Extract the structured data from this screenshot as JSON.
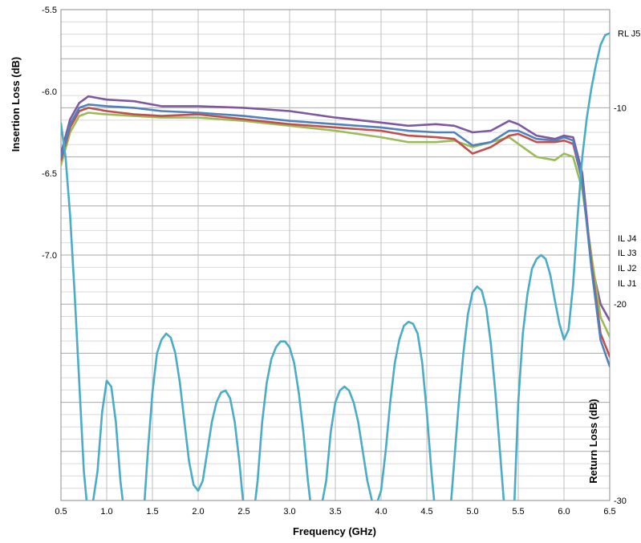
{
  "chart_data": [
    {
      "type": "line",
      "xlabel": "Frequency (GHz)",
      "ylabel": "Insertion Loss (dB)",
      "xlim": [
        0.5,
        6.5
      ],
      "ylim": [
        -8.5,
        -5.5
      ],
      "x_ticks": [
        "0.5",
        "1.0",
        "1.5",
        "2.0",
        "2.5",
        "3.0",
        "3.5",
        "4.0",
        "4.5",
        "5.0",
        "5.5",
        "6.0",
        "6.5"
      ],
      "y_ticks": [
        {
          "value": -5.5,
          "label": "-5.5"
        },
        {
          "value": -6.0,
          "label": "-6.0"
        },
        {
          "value": -6.5,
          "label": "-6.5"
        },
        {
          "value": -7.0,
          "label": "-7.0"
        }
      ],
      "grid": "major and minor",
      "series": [
        {
          "name": "IL J4",
          "color": "#7f58a0",
          "x": [
            0.5,
            0.6,
            0.7,
            0.8,
            1.0,
            1.3,
            1.6,
            2.0,
            2.5,
            3.0,
            3.5,
            4.0,
            4.3,
            4.6,
            4.8,
            5.0,
            5.2,
            5.4,
            5.5,
            5.7,
            5.9,
            6.0,
            6.1,
            6.2,
            6.3,
            6.4,
            6.5
          ],
          "y": [
            -6.38,
            -6.17,
            -6.07,
            -6.03,
            -6.05,
            -6.06,
            -6.09,
            -6.09,
            -6.1,
            -6.12,
            -6.16,
            -6.19,
            -6.21,
            -6.2,
            -6.21,
            -6.25,
            -6.24,
            -6.18,
            -6.2,
            -6.27,
            -6.29,
            -6.27,
            -6.28,
            -6.5,
            -7.05,
            -7.3,
            -7.4
          ]
        },
        {
          "name": "IL J3",
          "color": "#9bbb59",
          "x": [
            0.5,
            0.6,
            0.7,
            0.8,
            1.0,
            1.3,
            1.6,
            2.0,
            2.5,
            3.0,
            3.5,
            4.0,
            4.3,
            4.6,
            4.8,
            5.0,
            5.2,
            5.4,
            5.5,
            5.7,
            5.9,
            6.0,
            6.1,
            6.2,
            6.3,
            6.4,
            6.5
          ],
          "y": [
            -6.45,
            -6.25,
            -6.15,
            -6.13,
            -6.14,
            -6.15,
            -6.16,
            -6.16,
            -6.18,
            -6.21,
            -6.24,
            -6.28,
            -6.31,
            -6.31,
            -6.3,
            -6.34,
            -6.31,
            -6.28,
            -6.32,
            -6.4,
            -6.42,
            -6.38,
            -6.4,
            -6.6,
            -7.0,
            -7.38,
            -7.5
          ]
        },
        {
          "name": "IL J2",
          "color": "#c0504d",
          "x": [
            0.5,
            0.6,
            0.7,
            0.8,
            1.0,
            1.3,
            1.6,
            2.0,
            2.5,
            3.0,
            3.5,
            4.0,
            4.3,
            4.6,
            4.8,
            5.0,
            5.2,
            5.4,
            5.5,
            5.7,
            5.9,
            6.0,
            6.1,
            6.2,
            6.3,
            6.4,
            6.5
          ],
          "y": [
            -6.42,
            -6.22,
            -6.12,
            -6.1,
            -6.12,
            -6.14,
            -6.15,
            -6.14,
            -6.17,
            -6.2,
            -6.22,
            -6.24,
            -6.27,
            -6.28,
            -6.29,
            -6.38,
            -6.34,
            -6.27,
            -6.26,
            -6.31,
            -6.31,
            -6.3,
            -6.32,
            -6.55,
            -7.05,
            -7.48,
            -7.62
          ]
        },
        {
          "name": "IL J1",
          "color": "#4f81bd",
          "x": [
            0.5,
            0.6,
            0.7,
            0.8,
            1.0,
            1.3,
            1.6,
            2.0,
            2.5,
            3.0,
            3.5,
            4.0,
            4.3,
            4.6,
            4.8,
            5.0,
            5.2,
            5.4,
            5.5,
            5.7,
            5.9,
            6.0,
            6.1,
            6.2,
            6.3,
            6.4,
            6.5
          ],
          "y": [
            -6.4,
            -6.2,
            -6.1,
            -6.08,
            -6.09,
            -6.1,
            -6.12,
            -6.13,
            -6.15,
            -6.18,
            -6.2,
            -6.22,
            -6.24,
            -6.25,
            -6.25,
            -6.33,
            -6.31,
            -6.24,
            -6.24,
            -6.29,
            -6.3,
            -6.28,
            -6.3,
            -6.55,
            -7.08,
            -7.52,
            -7.68
          ]
        }
      ]
    },
    {
      "type": "line",
      "ylabel": "Return Loss (dB)",
      "xlim": [
        0.5,
        6.5
      ],
      "ylim": [
        -30,
        -5
      ],
      "y_ticks": [
        {
          "value": -10,
          "label": "-10"
        },
        {
          "value": -20,
          "label": "-20"
        },
        {
          "value": -30,
          "label": "-30"
        }
      ],
      "series": [
        {
          "name": "RL J5",
          "color": "#4bacc6",
          "x": [
            0.5,
            0.55,
            0.6,
            0.65,
            0.7,
            0.75,
            0.8,
            0.82,
            0.9,
            0.95,
            1.0,
            1.05,
            1.1,
            1.15,
            1.2,
            1.4,
            1.45,
            1.5,
            1.55,
            1.6,
            1.65,
            1.7,
            1.75,
            1.8,
            1.85,
            1.9,
            1.95,
            2.0,
            2.05,
            2.1,
            2.15,
            2.2,
            2.25,
            2.3,
            2.35,
            2.4,
            2.45,
            2.5,
            2.55,
            2.6,
            2.65,
            2.7,
            2.75,
            2.8,
            2.85,
            2.9,
            2.95,
            3.0,
            3.05,
            3.1,
            3.15,
            3.2,
            3.25,
            3.3,
            3.32,
            3.4,
            3.45,
            3.5,
            3.55,
            3.6,
            3.65,
            3.7,
            3.75,
            3.8,
            3.85,
            3.9,
            3.95,
            4.0,
            4.05,
            4.1,
            4.15,
            4.2,
            4.25,
            4.3,
            4.35,
            4.4,
            4.45,
            4.5,
            4.55,
            4.6,
            4.75,
            4.8,
            4.85,
            4.9,
            4.95,
            5.0,
            5.05,
            5.1,
            5.15,
            5.2,
            5.25,
            5.3,
            5.35,
            5.4,
            5.45,
            5.5,
            5.55,
            5.6,
            5.65,
            5.7,
            5.75,
            5.8,
            5.85,
            5.9,
            5.95,
            6.0,
            6.05,
            6.1,
            6.15,
            6.2,
            6.25,
            6.3,
            6.35,
            6.4,
            6.45,
            6.5
          ],
          "y": [
            -10.8,
            -12.5,
            -15.5,
            -19.5,
            -24.0,
            -28.5,
            -31.0,
            -31.0,
            -28.5,
            -25.5,
            -23.9,
            -24.2,
            -26.0,
            -29.0,
            -31.0,
            -31.0,
            -27.5,
            -24.5,
            -22.5,
            -21.8,
            -21.5,
            -21.7,
            -22.5,
            -24.0,
            -26.0,
            -28.0,
            -29.2,
            -29.5,
            -29.0,
            -27.5,
            -26.0,
            -25.0,
            -24.5,
            -24.4,
            -24.8,
            -26.0,
            -28.0,
            -30.5,
            -31.0,
            -31.0,
            -29.0,
            -26.0,
            -24.0,
            -22.8,
            -22.2,
            -21.9,
            -21.9,
            -22.2,
            -23.0,
            -24.5,
            -26.5,
            -29.0,
            -31.0,
            -31.0,
            -31.0,
            -29.0,
            -26.5,
            -25.0,
            -24.4,
            -24.2,
            -24.4,
            -25.0,
            -26.0,
            -27.5,
            -29.0,
            -30.0,
            -30.2,
            -29.5,
            -27.5,
            -25.0,
            -23.0,
            -21.8,
            -21.1,
            -20.9,
            -21.0,
            -21.5,
            -23.0,
            -25.5,
            -28.5,
            -31.0,
            -31.0,
            -28.0,
            -25.0,
            -22.5,
            -20.5,
            -19.4,
            -19.1,
            -19.3,
            -20.2,
            -22.0,
            -24.5,
            -27.5,
            -30.5,
            -31.0,
            -31.0,
            -25.0,
            -21.5,
            -19.5,
            -18.2,
            -17.7,
            -17.5,
            -17.7,
            -18.5,
            -19.8,
            -21.0,
            -21.8,
            -21.3,
            -19.0,
            -15.5,
            -12.5,
            -10.5,
            -9.0,
            -7.8,
            -6.8,
            -6.3,
            -6.2
          ]
        }
      ]
    }
  ]
}
